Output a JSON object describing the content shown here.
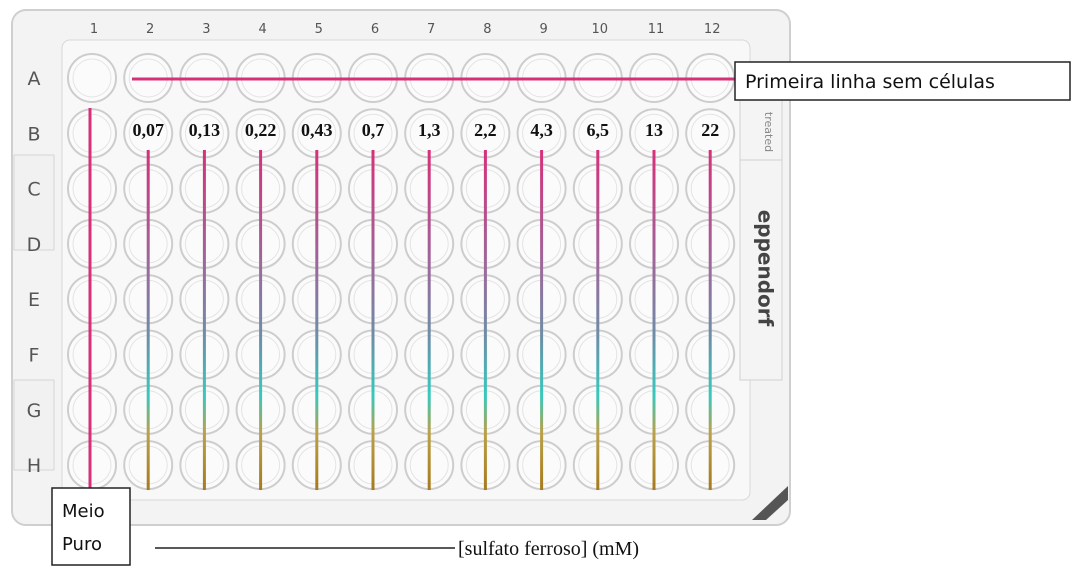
{
  "plate": {
    "columns": [
      "1",
      "2",
      "3",
      "4",
      "5",
      "6",
      "7",
      "8",
      "9",
      "10",
      "11",
      "12"
    ],
    "rows": [
      "A",
      "B",
      "C",
      "D",
      "E",
      "F",
      "G",
      "H"
    ],
    "side_label": "treated",
    "brand": "eppendorf"
  },
  "annotations": {
    "top_row": "Primeira linha sem células",
    "control": [
      "Meio",
      "Puro"
    ],
    "axis_label": "[sulfato ferroso] (mM)",
    "concentrations": [
      "0,07",
      "0,13",
      "0,22",
      "0,43",
      "0,7",
      "1,3",
      "2,2",
      "4,3",
      "6,5",
      "13",
      "22"
    ]
  }
}
